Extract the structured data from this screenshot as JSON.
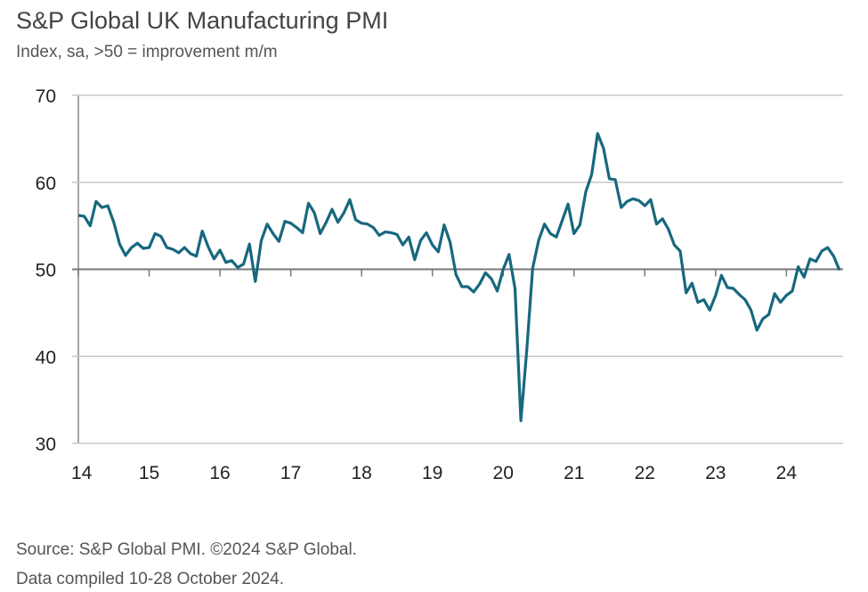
{
  "chart_data": {
    "type": "line",
    "title": "S&P Global UK Manufacturing PMI",
    "subtitle": "Index, sa, >50 = improvement m/m",
    "xlabel": "",
    "ylabel": "",
    "x_start": "2014-01",
    "x_end": "2024-10",
    "frequency": "monthly",
    "x_tick_labels": [
      "14",
      "15",
      "16",
      "17",
      "18",
      "19",
      "20",
      "21",
      "22",
      "23",
      "24"
    ],
    "y_tick_labels": [
      "70",
      "60",
      "50",
      "40",
      "30"
    ],
    "ylim": [
      30,
      70
    ],
    "grid": true,
    "reference_line": 50,
    "line_color": "#17687e",
    "series": [
      {
        "values": [
          56.2,
          56.1,
          55.0,
          57.8,
          57.1,
          57.3,
          55.4,
          52.9,
          51.6,
          52.5,
          53.0,
          52.4,
          52.5,
          54.1,
          53.8,
          52.5,
          52.3,
          51.9,
          52.5,
          51.8,
          51.5,
          54.4,
          52.6,
          51.2,
          52.2,
          50.8,
          51.0,
          50.2,
          50.6,
          52.9,
          48.6,
          53.3,
          55.2,
          54.1,
          53.2,
          55.5,
          55.3,
          54.8,
          54.2,
          57.6,
          56.5,
          54.1,
          55.4,
          56.9,
          55.4,
          56.5,
          58.0,
          55.7,
          55.3,
          55.2,
          54.8,
          53.9,
          54.3,
          54.2,
          54.0,
          52.8,
          53.7,
          51.1,
          53.3,
          54.2,
          52.8,
          52.0,
          55.1,
          53.1,
          49.4,
          48.0,
          48.0,
          47.4,
          48.3,
          49.6,
          48.9,
          47.5,
          50.0,
          51.7,
          47.8,
          32.6,
          40.7,
          50.1,
          53.3,
          55.2,
          54.1,
          53.7,
          55.6,
          57.5,
          54.1,
          55.1,
          58.9,
          60.9,
          65.6,
          63.9,
          60.4,
          60.3,
          57.1,
          57.8,
          58.1,
          57.9,
          57.3,
          58.0,
          55.2,
          55.8,
          54.6,
          52.8,
          52.1,
          47.3,
          48.4,
          46.2,
          46.5,
          45.3,
          47.0,
          49.3,
          47.9,
          47.8,
          47.1,
          46.5,
          45.3,
          43.0,
          44.3,
          44.8,
          47.2,
          46.2,
          47.0,
          47.5,
          50.3,
          49.1,
          51.2,
          50.9,
          52.1,
          52.5,
          51.5,
          49.9
        ]
      }
    ]
  },
  "footer": {
    "source": "Source: S&P Global PMI. ©2024 S&P Global.",
    "compiled": "Data compiled 10-28 October 2024."
  }
}
